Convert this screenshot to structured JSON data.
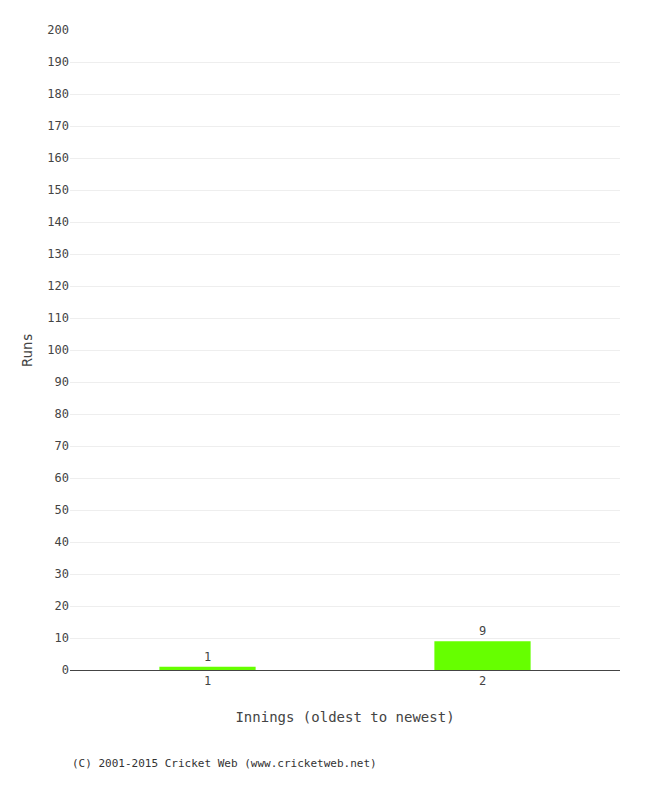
{
  "chart_data": {
    "type": "bar",
    "xlabel": "Innings (oldest to newest)",
    "ylabel": "Runs",
    "categories": [
      "1",
      "2"
    ],
    "values": [
      1,
      9
    ],
    "color": "#66ff00",
    "data_labels": true,
    "ylim": [
      0,
      200
    ],
    "yticks": [
      0,
      10,
      20,
      30,
      40,
      50,
      60,
      70,
      80,
      90,
      100,
      110,
      120,
      130,
      140,
      150,
      160,
      170,
      180,
      190,
      200
    ],
    "grid": true,
    "annotations": [
      "(C) 2001-2015 Cricket Web (www.cricketweb.net)"
    ]
  }
}
